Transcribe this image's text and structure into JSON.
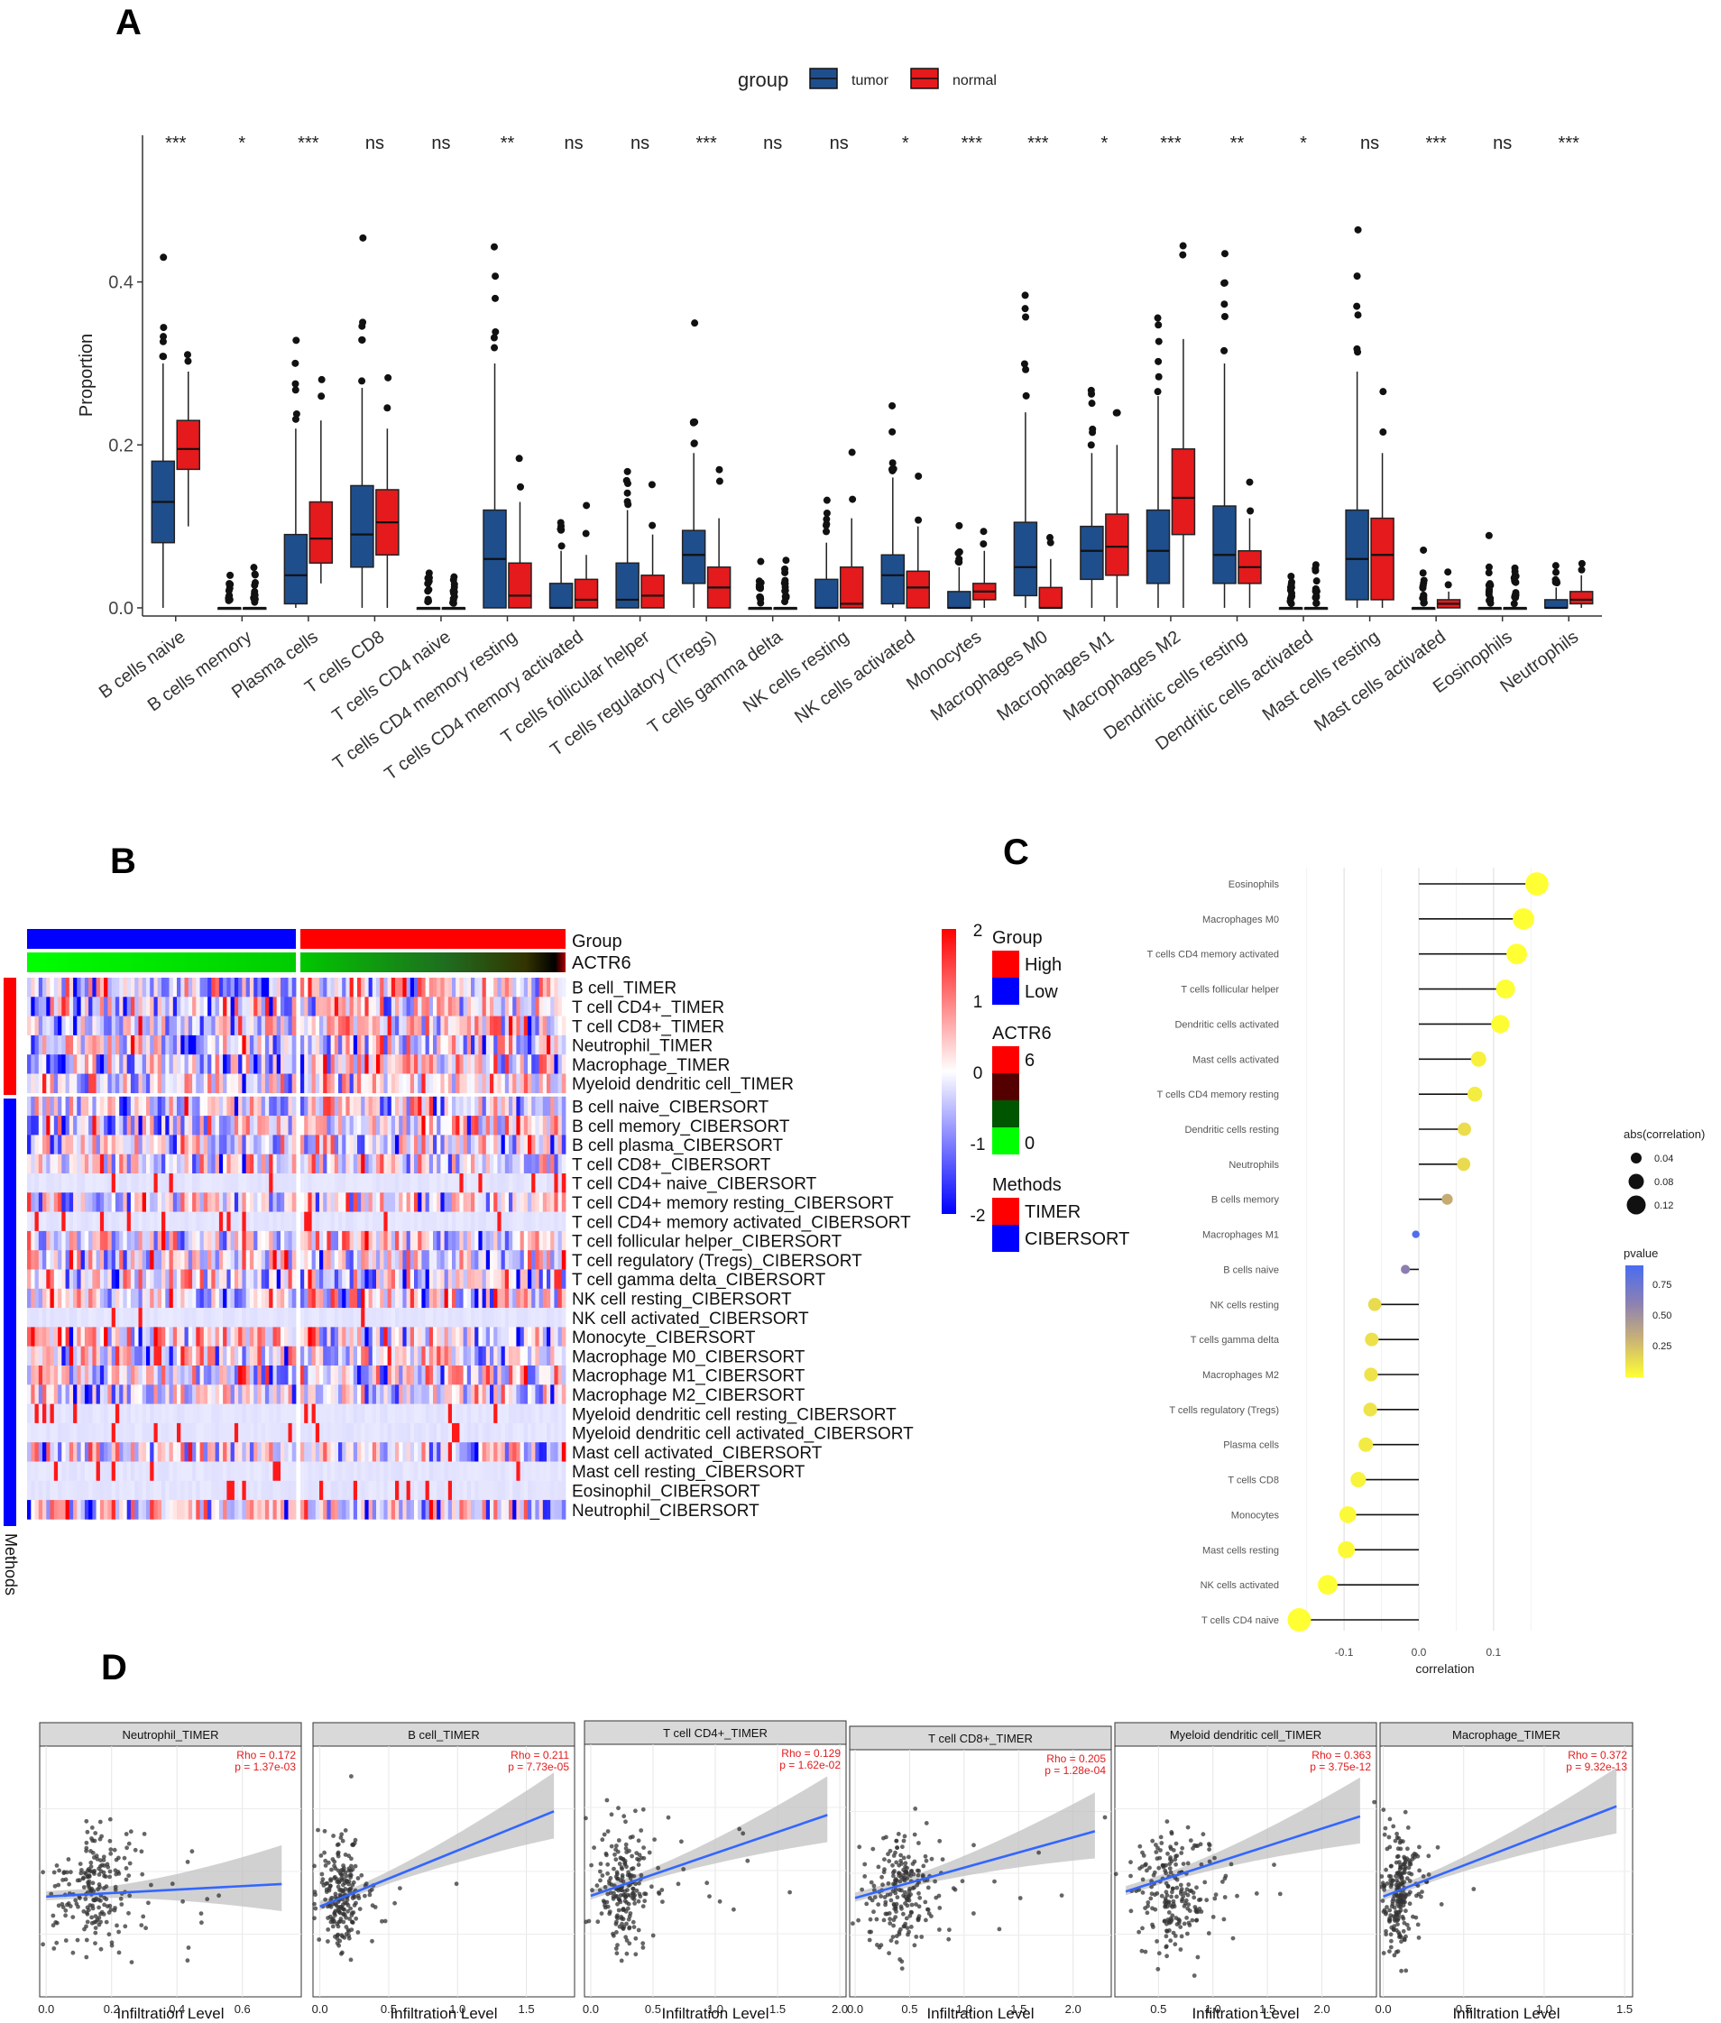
{
  "colors": {
    "tumor": "#1f4e8c",
    "normal": "#e41a1c",
    "high": "#ff0000",
    "low": "#0000ff",
    "timer": "#ff0000",
    "cibersort": "#0000ff",
    "fit_line": "#3366ff",
    "stat_red": "#e41a1c"
  },
  "chart_data": [
    {
      "panel": "A",
      "type": "box",
      "legend_title": "group",
      "legend_labels": [
        "tumor",
        "normal"
      ],
      "ylabel": "Proportion",
      "ylim": [
        -0.01,
        0.58
      ],
      "yticks": [
        0.0,
        0.2,
        0.4
      ],
      "ytick_labels": [
        "0.0",
        "0.2",
        "0.4"
      ],
      "categories": [
        "B cells naive",
        "B cells memory",
        "Plasma cells",
        "T cells CD8",
        "T cells CD4 naive",
        "T cells CD4 memory resting",
        "T cells CD4 memory activated",
        "T cells follicular helper",
        "T cells regulatory (Tregs)",
        "T cells gamma delta",
        "NK cells resting",
        "NK cells activated",
        "Monocytes",
        "Macrophages M0",
        "Macrophages M1",
        "Macrophages M2",
        "Dendritic cells resting",
        "Dendritic cells activated",
        "Mast cells resting",
        "Mast cells activated",
        "Eosinophils",
        "Neutrophils"
      ],
      "significance": [
        "***",
        "*",
        "***",
        "ns",
        "ns",
        "**",
        "ns",
        "ns",
        "***",
        "ns",
        "ns",
        "*",
        "***",
        "***",
        "*",
        "***",
        "**",
        "*",
        "ns",
        "***",
        "ns",
        "***"
      ],
      "series": [
        {
          "name": "tumor",
          "box": [
            [
              0.0,
              0.08,
              0.13,
              0.18,
              0.3
            ],
            [
              0.0,
              0.0,
              0.0,
              0.0,
              0.0
            ],
            [
              0.0,
              0.005,
              0.04,
              0.09,
              0.22
            ],
            [
              0.0,
              0.05,
              0.09,
              0.15,
              0.27
            ],
            [
              0.0,
              0.0,
              0.0,
              0.0,
              0.0
            ],
            [
              0.0,
              0.0,
              0.06,
              0.12,
              0.3
            ],
            [
              0.0,
              0.0,
              0.0,
              0.03,
              0.07
            ],
            [
              0.0,
              0.0,
              0.01,
              0.055,
              0.12
            ],
            [
              0.0,
              0.03,
              0.065,
              0.095,
              0.19
            ],
            [
              0.0,
              0.0,
              0.0,
              0.0,
              0.0
            ],
            [
              0.0,
              0.0,
              0.0,
              0.035,
              0.08
            ],
            [
              0.0,
              0.005,
              0.04,
              0.065,
              0.16
            ],
            [
              0.0,
              0.0,
              0.0,
              0.02,
              0.05
            ],
            [
              0.0,
              0.015,
              0.05,
              0.105,
              0.24
            ],
            [
              0.0,
              0.035,
              0.07,
              0.1,
              0.19
            ],
            [
              0.0,
              0.03,
              0.07,
              0.12,
              0.26
            ],
            [
              0.0,
              0.03,
              0.065,
              0.125,
              0.3
            ],
            [
              0.0,
              0.0,
              0.0,
              0.0,
              0.0
            ],
            [
              0.0,
              0.01,
              0.06,
              0.12,
              0.29
            ],
            [
              0.0,
              0.0,
              0.0,
              0.0,
              0.0
            ],
            [
              0.0,
              0.0,
              0.0,
              0.0,
              0.0
            ],
            [
              0.0,
              0.0,
              0.0,
              0.01,
              0.025
            ]
          ]
        },
        {
          "name": "normal",
          "box": [
            [
              0.1,
              0.17,
              0.195,
              0.23,
              0.29
            ],
            [
              0.0,
              0.0,
              0.0,
              0.0,
              0.0
            ],
            [
              0.03,
              0.055,
              0.085,
              0.13,
              0.23
            ],
            [
              0.0,
              0.065,
              0.105,
              0.145,
              0.22
            ],
            [
              0.0,
              0.0,
              0.0,
              0.0,
              0.0
            ],
            [
              0.0,
              0.0,
              0.015,
              0.055,
              0.13
            ],
            [
              0.0,
              0.0,
              0.01,
              0.035,
              0.065
            ],
            [
              0.0,
              0.0,
              0.015,
              0.04,
              0.09
            ],
            [
              0.0,
              0.0,
              0.025,
              0.05,
              0.11
            ],
            [
              0.0,
              0.0,
              0.0,
              0.0,
              0.0
            ],
            [
              0.0,
              0.0,
              0.005,
              0.05,
              0.11
            ],
            [
              0.0,
              0.0,
              0.025,
              0.045,
              0.1
            ],
            [
              0.0,
              0.01,
              0.02,
              0.03,
              0.07
            ],
            [
              0.0,
              0.0,
              0.0,
              0.025,
              0.06
            ],
            [
              0.0,
              0.04,
              0.075,
              0.115,
              0.2
            ],
            [
              0.0,
              0.09,
              0.135,
              0.195,
              0.33
            ],
            [
              0.0,
              0.03,
              0.05,
              0.07,
              0.11
            ],
            [
              0.0,
              0.0,
              0.0,
              0.0,
              0.0
            ],
            [
              0.0,
              0.01,
              0.065,
              0.11,
              0.19
            ],
            [
              0.0,
              0.0,
              0.005,
              0.01,
              0.02
            ],
            [
              0.0,
              0.0,
              0.0,
              0.0,
              0.0
            ],
            [
              0.0,
              0.005,
              0.01,
              0.02,
              0.04
            ]
          ]
        }
      ]
    },
    {
      "panel": "B",
      "type": "heatmap",
      "annotation_labels": [
        "Group",
        "ACTR6"
      ],
      "row_labels": [
        "B cell_TIMER",
        "T cell CD4+_TIMER",
        "T cell CD8+_TIMER",
        "Neutrophil_TIMER",
        "Macrophage_TIMER",
        "Myeloid dendritic cell_TIMER",
        "B cell naive_CIBERSORT",
        "B cell memory_CIBERSORT",
        "B cell plasma_CIBERSORT",
        "T cell CD8+_CIBERSORT",
        "T cell CD4+ naive_CIBERSORT",
        "T cell CD4+ memory resting_CIBERSORT",
        "T cell CD4+ memory activated_CIBERSORT",
        "T cell follicular helper_CIBERSORT",
        "T cell regulatory (Tregs)_CIBERSORT",
        "T cell gamma delta_CIBERSORT",
        "NK cell resting_CIBERSORT",
        "NK cell activated_CIBERSORT",
        "Monocyte_CIBERSORT",
        "Macrophage M0_CIBERSORT",
        "Macrophage M1_CIBERSORT",
        "Macrophage M2_CIBERSORT",
        "Myeloid dendritic cell resting_CIBERSORT",
        "Myeloid dendritic cell activated_CIBERSORT",
        "Mast cell activated_CIBERSORT",
        "Mast cell resting_CIBERSORT",
        "Eosinophil_CIBERSORT",
        "Neutrophil_CIBERSORT"
      ],
      "colorbar_ticks": [
        "2",
        "1",
        "0",
        "-1",
        "-2"
      ],
      "colorbar_range": [
        -2,
        2
      ],
      "legend_group_title": "Group",
      "legend_group_items": [
        "High",
        "Low"
      ],
      "legend_actr6_title": "ACTR6",
      "legend_actr6_ticks": [
        "6",
        "0"
      ],
      "legend_methods_title": "Methods",
      "legend_methods_items": [
        "TIMER",
        "CIBERSORT"
      ],
      "methods_axis_label": "Methods"
    },
    {
      "panel": "C",
      "type": "lollipop",
      "categories": [
        "Eosinophils",
        "Macrophages M0",
        "T cells CD4 memory activated",
        "T cells follicular helper",
        "Dendritic cells activated",
        "Mast cells activated",
        "T cells CD4 memory resting",
        "Dendritic cells resting",
        "Neutrophils",
        "B cells memory",
        "Macrophages M1",
        "B cells naive",
        "NK cells resting",
        "T cells gamma delta",
        "Macrophages M2",
        "T cells regulatory (Tregs)",
        "Plasma cells",
        "T cells CD8",
        "Monocytes",
        "Mast cells resting",
        "NK cells activated",
        "T cells CD4 naive"
      ],
      "correlation": [
        0.158,
        0.14,
        0.131,
        0.116,
        0.109,
        0.08,
        0.075,
        0.061,
        0.06,
        0.038,
        -0.004,
        -0.018,
        -0.059,
        -0.063,
        -0.064,
        -0.065,
        -0.071,
        -0.081,
        -0.095,
        -0.097,
        -0.122,
        -0.16
      ],
      "pvalue": [
        0.001,
        0.002,
        0.003,
        0.006,
        0.01,
        0.07,
        0.09,
        0.17,
        0.18,
        0.4,
        0.93,
        0.7,
        0.18,
        0.15,
        0.14,
        0.14,
        0.1,
        0.06,
        0.03,
        0.03,
        0.006,
        0.001
      ],
      "xlabel": "correlation",
      "xticks": [
        -0.1,
        0.0,
        0.1
      ],
      "xtick_labels": [
        "-0.1",
        "0.0",
        "0.1"
      ],
      "xlim": [
        -0.175,
        0.175
      ],
      "size_legend_title": "abs(correlation)",
      "size_legend_values": [
        "0.04",
        "0.08",
        "0.12"
      ],
      "color_legend_title": "pvalue",
      "color_legend_ticks": [
        "0.75",
        "0.50",
        "0.25"
      ]
    },
    {
      "panel": "D",
      "type": "scatter",
      "xlabel": "Infiltration Level",
      "subplots": [
        {
          "title": "Neutrophil_TIMER",
          "rho": "Rho = 0.172",
          "p": "p = 1.37e-03",
          "xlim": [
            -0.02,
            0.78
          ],
          "xticks": [
            "0.0",
            "0.2",
            "0.4",
            "0.6"
          ],
          "xtick_values": [
            0.0,
            0.2,
            0.4,
            0.6
          ],
          "x_center": 0.12,
          "x_spread": 0.09,
          "fit": [
            [
              0.0,
              0.4
            ],
            [
              0.72,
              0.45
            ]
          ]
        },
        {
          "title": "B cell_TIMER",
          "rho": "Rho = 0.211",
          "p": "p = 7.73e-05",
          "xlim": [
            -0.05,
            1.85
          ],
          "xticks": [
            "0.0",
            "0.5",
            "1.0",
            "1.5"
          ],
          "xtick_values": [
            0.0,
            0.5,
            1.0,
            1.5
          ],
          "x_center": 0.12,
          "x_spread": 0.12,
          "fit": [
            [
              0.0,
              0.36
            ],
            [
              1.7,
              0.74
            ]
          ]
        },
        {
          "title": "T cell CD4+_TIMER",
          "rho": "Rho = 0.129",
          "p": "p = 1.62e-02",
          "xlim": [
            -0.05,
            2.05
          ],
          "xticks": [
            "0.0",
            "0.5",
            "1.0",
            "1.5",
            "2.0"
          ],
          "xtick_values": [
            0.0,
            0.5,
            1.0,
            1.5,
            2.0
          ],
          "x_center": 0.2,
          "x_spread": 0.15,
          "fit": [
            [
              0.0,
              0.4
            ],
            [
              1.9,
              0.72
            ]
          ]
        },
        {
          "title": "T cell CD8+_TIMER",
          "rho": "Rho = 0.205",
          "p": "p = 1.28e-04",
          "xlim": [
            -0.05,
            2.35
          ],
          "xticks": [
            "0.0",
            "0.5",
            "1.0",
            "1.5",
            "2.0"
          ],
          "xtick_values": [
            0.0,
            0.5,
            1.0,
            1.5,
            2.0
          ],
          "x_center": 0.35,
          "x_spread": 0.25,
          "fit": [
            [
              0.0,
              0.4
            ],
            [
              2.2,
              0.67
            ]
          ]
        },
        {
          "title": "Myeloid dendritic cell_TIMER",
          "rho": "Rho = 0.363",
          "p": "p = 3.75e-12",
          "xlim": [
            0.1,
            2.5
          ],
          "xticks": [
            "0.5",
            "1.0",
            "1.5",
            "2.0"
          ],
          "xtick_values": [
            0.5,
            1.0,
            1.5,
            2.0
          ],
          "x_center": 0.55,
          "x_spread": 0.25,
          "fit": [
            [
              0.2,
              0.42
            ],
            [
              2.35,
              0.72
            ]
          ]
        },
        {
          "title": "Macrophage_TIMER",
          "rho": "Rho = 0.372",
          "p": "p = 9.32e-13",
          "xlim": [
            -0.02,
            1.55
          ],
          "xticks": [
            "0.0",
            "0.5",
            "1.0",
            "1.5"
          ],
          "xtick_values": [
            0.0,
            0.5,
            1.0,
            1.5
          ],
          "x_center": 0.08,
          "x_spread": 0.08,
          "fit": [
            [
              0.0,
              0.4
            ],
            [
              1.45,
              0.76
            ]
          ]
        }
      ]
    }
  ],
  "panel_labels": [
    "A",
    "B",
    "C",
    "D"
  ]
}
